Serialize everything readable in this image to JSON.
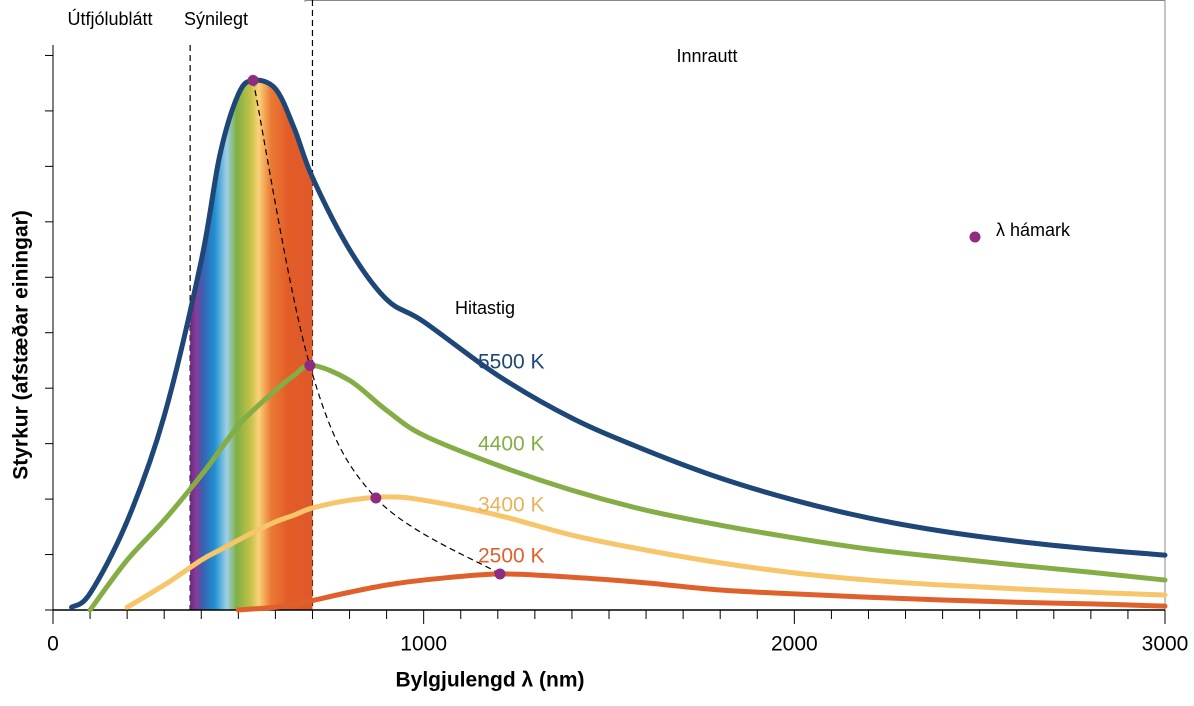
{
  "chart_data": {
    "type": "line",
    "x_label": "Bylgjulengd λ (nm)",
    "y_label": "Styrkur (afstæðar einingar)",
    "x": [
      50,
      100,
      200,
      300,
      400,
      450,
      500,
      540,
      600,
      650,
      700,
      800,
      900,
      1000,
      1200,
      1400,
      1600,
      1800,
      2000,
      2200,
      2400,
      2600,
      2800,
      3000
    ],
    "series_title": "Hitastig",
    "series": [
      {
        "name": "5500 K",
        "color": "#1e4677",
        "label_color": "#1e4677",
        "values": [
          0.05,
          0.3,
          1.6,
          3.5,
          6.3,
          8.2,
          9.3,
          9.55,
          9.4,
          8.7,
          7.8,
          6.5,
          5.6,
          5.2,
          4.23,
          3.46,
          2.88,
          2.38,
          1.98,
          1.66,
          1.42,
          1.24,
          1.1,
          0.99
        ]
      },
      {
        "name": "4400 K",
        "color": "#84ad45",
        "label_color": "#84ad45",
        "values": [
          null,
          0,
          0.9,
          1.62,
          2.43,
          2.88,
          3.33,
          3.6,
          3.96,
          4.23,
          4.41,
          4.14,
          3.6,
          3.15,
          2.61,
          2.16,
          1.8,
          1.53,
          1.3,
          1.1,
          0.95,
          0.81,
          0.68,
          0.54
        ]
      },
      {
        "name": "3400 K",
        "color": "#f7c56a",
        "label_color": "#e9b25a",
        "values": [
          null,
          null,
          0.05,
          0.45,
          0.9,
          1.08,
          1.26,
          1.4,
          1.59,
          1.71,
          1.84,
          1.98,
          2.04,
          1.98,
          1.71,
          1.35,
          1.08,
          0.85,
          0.67,
          0.54,
          0.45,
          0.38,
          0.32,
          0.27
        ]
      },
      {
        "name": "2500 K",
        "color": "#e0602b",
        "label_color": "#e0602b",
        "values": [
          null,
          null,
          null,
          null,
          null,
          null,
          0,
          0.02,
          0.05,
          0.1,
          0.17,
          0.32,
          0.45,
          0.54,
          0.65,
          0.59,
          0.49,
          0.36,
          0.29,
          0.23,
          0.18,
          0.14,
          0.11,
          0.07
        ]
      }
    ],
    "peaks": {
      "name": "λ hámark",
      "color": "#8e2c82",
      "x": [
        540,
        693,
        871,
        1206
      ],
      "y": [
        9.55,
        4.41,
        2.02,
        0.65
      ]
    },
    "regions": [
      {
        "label": "Útfjólublátt"
      },
      {
        "label": "Sýnilegt",
        "range": [
          370,
          700
        ]
      },
      {
        "label": "Innrautt"
      }
    ],
    "xlim": [
      0,
      3000
    ],
    "ylim": [
      0,
      11
    ],
    "xticks": [
      0,
      1000,
      2000,
      3000
    ],
    "yticks": [
      0,
      1,
      2,
      3,
      4,
      5,
      6,
      7,
      8,
      9,
      10
    ]
  }
}
